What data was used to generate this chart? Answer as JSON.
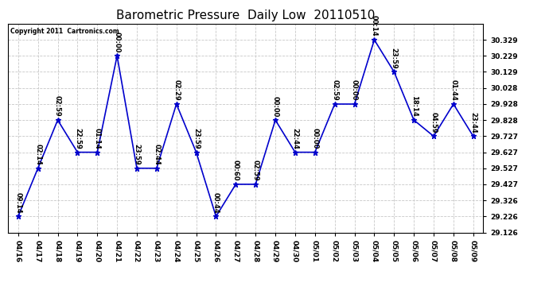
{
  "title": "Barometric Pressure  Daily Low  20110510",
  "copyright": "Copyright 2011  Cartronics.com",
  "x_labels": [
    "04/16",
    "04/17",
    "04/18",
    "04/19",
    "04/20",
    "04/21",
    "04/22",
    "04/23",
    "04/24",
    "04/25",
    "04/26",
    "04/27",
    "04/28",
    "04/29",
    "04/30",
    "05/01",
    "05/02",
    "05/03",
    "05/04",
    "05/05",
    "05/06",
    "05/07",
    "05/08",
    "05/09"
  ],
  "y_values": [
    29.226,
    29.527,
    29.828,
    29.627,
    29.627,
    30.229,
    29.527,
    29.527,
    29.928,
    29.627,
    29.226,
    29.427,
    29.427,
    29.828,
    29.627,
    29.627,
    29.928,
    29.928,
    30.329,
    30.129,
    29.828,
    29.727,
    29.928,
    29.727
  ],
  "point_labels": [
    "09:14",
    "02:14",
    "02:59",
    "22:59",
    "01:14",
    "00:00",
    "23:59",
    "02:44",
    "02:29",
    "23:59",
    "00:44",
    "00:60",
    "02:59",
    "00:00",
    "22:44",
    "00:00",
    "02:59",
    "00:00",
    "00:14",
    "23:59",
    "18:14",
    "04:59",
    "01:44",
    "23:44"
  ],
  "line_color": "#0000CC",
  "marker_color": "#0000CC",
  "background_color": "#FFFFFF",
  "grid_color": "#C8C8C8",
  "title_fontsize": 11,
  "ylim": [
    29.126,
    30.429
  ],
  "yticks": [
    29.126,
    29.226,
    29.326,
    29.427,
    29.527,
    29.627,
    29.727,
    29.828,
    29.928,
    30.028,
    30.129,
    30.229,
    30.329
  ],
  "ytick_labels": [
    "29.126",
    "29.226",
    "29.326",
    "29.427",
    "29.527",
    "29.627",
    "29.727",
    "29.828",
    "29.928",
    "30.028",
    "30.129",
    "30.229",
    "30.329"
  ],
  "annotation_fontsize": 6,
  "tick_fontsize": 6.5
}
